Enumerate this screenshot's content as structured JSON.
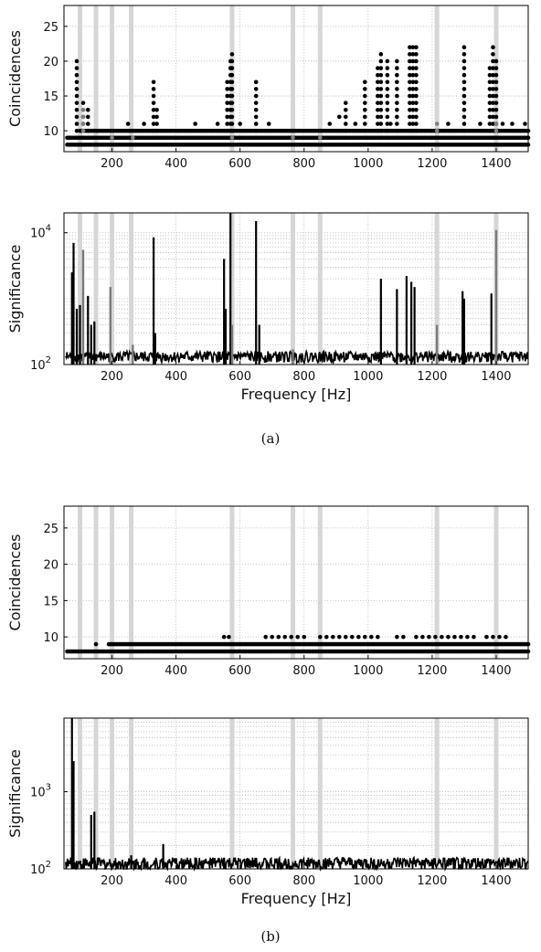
{
  "captions": {
    "a": "(a)",
    "b": "(b)"
  },
  "chart_data": [
    {
      "panel": "a-top",
      "type": "scatter",
      "ylabel": "Coincidences",
      "xlabel": "",
      "xlim": [
        50,
        1500
      ],
      "ylim": [
        7,
        28
      ],
      "yscale": "linear",
      "x_ticks": [
        200,
        400,
        600,
        800,
        1000,
        1200,
        1400
      ],
      "y_ticks": [
        10,
        15,
        20,
        25
      ],
      "grid": true,
      "vlines": [
        100,
        150,
        200,
        260,
        575,
        765,
        850,
        1215,
        1400
      ],
      "baseline_rows": [
        {
          "y": 8,
          "from": 60,
          "to": 1500
        },
        {
          "y": 9,
          "from": 60,
          "to": 1500
        },
        {
          "y": 10,
          "from": 100,
          "to": 1500
        }
      ],
      "columns": [
        {
          "x": 90,
          "top": 20
        },
        {
          "x": 110,
          "top": 14
        },
        {
          "x": 125,
          "top": 13
        },
        {
          "x": 330,
          "top": 17
        },
        {
          "x": 340,
          "top": 13
        },
        {
          "x": 560,
          "top": 17
        },
        {
          "x": 570,
          "top": 20
        },
        {
          "x": 575,
          "top": 21
        },
        {
          "x": 650,
          "top": 17
        },
        {
          "x": 930,
          "top": 14
        },
        {
          "x": 990,
          "top": 17
        },
        {
          "x": 1030,
          "top": 19
        },
        {
          "x": 1040,
          "top": 21
        },
        {
          "x": 1060,
          "top": 20
        },
        {
          "x": 1090,
          "top": 20
        },
        {
          "x": 1130,
          "top": 22
        },
        {
          "x": 1140,
          "top": 22
        },
        {
          "x": 1150,
          "top": 22
        },
        {
          "x": 1300,
          "top": 22
        },
        {
          "x": 1380,
          "top": 19
        },
        {
          "x": 1390,
          "top": 22
        },
        {
          "x": 1400,
          "top": 20
        }
      ],
      "points": [
        {
          "x": 250,
          "y": 11
        },
        {
          "x": 300,
          "y": 11
        },
        {
          "x": 460,
          "y": 11
        },
        {
          "x": 530,
          "y": 11
        },
        {
          "x": 600,
          "y": 11
        },
        {
          "x": 690,
          "y": 11
        },
        {
          "x": 880,
          "y": 11
        },
        {
          "x": 910,
          "y": 12
        },
        {
          "x": 960,
          "y": 11
        },
        {
          "x": 1070,
          "y": 11
        },
        {
          "x": 1250,
          "y": 11
        },
        {
          "x": 1350,
          "y": 11
        },
        {
          "x": 1420,
          "y": 11
        },
        {
          "x": 1450,
          "y": 11
        },
        {
          "x": 1490,
          "y": 11
        }
      ],
      "gray_points": [
        {
          "x": 110,
          "y": 13
        },
        {
          "x": 110,
          "y": 12
        },
        {
          "x": 110,
          "y": 11
        },
        {
          "x": 110,
          "y": 10
        },
        {
          "x": 200,
          "y": 9
        },
        {
          "x": 265,
          "y": 9
        },
        {
          "x": 575,
          "y": 9
        },
        {
          "x": 765,
          "y": 9
        },
        {
          "x": 850,
          "y": 9
        },
        {
          "x": 1215,
          "y": 11
        },
        {
          "x": 1215,
          "y": 10
        },
        {
          "x": 1400,
          "y": 11
        },
        {
          "x": 1400,
          "y": 10
        }
      ]
    },
    {
      "panel": "a-bottom",
      "type": "line",
      "ylabel": "Significance",
      "xlabel": "Frequency [Hz]",
      "xlim": [
        50,
        1500
      ],
      "ylim": [
        100,
        20000
      ],
      "yscale": "log",
      "x_ticks": [
        200,
        400,
        600,
        800,
        1000,
        1200,
        1400
      ],
      "y_ticks": [
        {
          "value": 100,
          "label": "10",
          "exp": "2"
        },
        {
          "value": 10000,
          "label": "10",
          "exp": "4"
        }
      ],
      "grid": true,
      "vlines": [
        100,
        150,
        200,
        260,
        575,
        765,
        850,
        1215,
        1400
      ],
      "noise_level": 130,
      "spikes": [
        {
          "x": 75,
          "y": 2500
        },
        {
          "x": 80,
          "y": 7000
        },
        {
          "x": 90,
          "y": 700
        },
        {
          "x": 100,
          "y": 800
        },
        {
          "x": 125,
          "y": 1100
        },
        {
          "x": 135,
          "y": 400
        },
        {
          "x": 145,
          "y": 450
        },
        {
          "x": 330,
          "y": 8500
        },
        {
          "x": 335,
          "y": 300
        },
        {
          "x": 550,
          "y": 4000
        },
        {
          "x": 555,
          "y": 700
        },
        {
          "x": 570,
          "y": 20000
        },
        {
          "x": 650,
          "y": 15000
        },
        {
          "x": 660,
          "y": 400
        },
        {
          "x": 1040,
          "y": 2000
        },
        {
          "x": 1090,
          "y": 1400
        },
        {
          "x": 1120,
          "y": 2200
        },
        {
          "x": 1135,
          "y": 1800
        },
        {
          "x": 1145,
          "y": 1500
        },
        {
          "x": 1295,
          "y": 1300
        },
        {
          "x": 1300,
          "y": 1000
        },
        {
          "x": 1385,
          "y": 1200
        }
      ],
      "gray_spikes": [
        {
          "x": 110,
          "y": 5500
        },
        {
          "x": 195,
          "y": 1500
        },
        {
          "x": 265,
          "y": 200
        },
        {
          "x": 575,
          "y": 400
        },
        {
          "x": 765,
          "y": 170
        },
        {
          "x": 1215,
          "y": 400
        },
        {
          "x": 1400,
          "y": 11000
        }
      ]
    },
    {
      "panel": "b-top",
      "type": "scatter",
      "ylabel": "Coincidences",
      "xlabel": "",
      "xlim": [
        50,
        1500
      ],
      "ylim": [
        7,
        28
      ],
      "yscale": "linear",
      "x_ticks": [
        200,
        400,
        600,
        800,
        1000,
        1200,
        1400
      ],
      "y_ticks": [
        10,
        15,
        20,
        25
      ],
      "grid": true,
      "vlines": [
        100,
        150,
        200,
        260,
        575,
        765,
        850,
        1215,
        1400
      ],
      "baseline_rows": [
        {
          "y": 8,
          "from": 60,
          "to": 1500
        },
        {
          "y": 9,
          "from": 190,
          "to": 1500
        }
      ],
      "points": [
        {
          "x": 150,
          "y": 9
        },
        {
          "x": 550,
          "y": 10
        },
        {
          "x": 565,
          "y": 10
        },
        {
          "x": 680,
          "y": 10
        },
        {
          "x": 700,
          "y": 10
        },
        {
          "x": 720,
          "y": 10
        },
        {
          "x": 740,
          "y": 10
        },
        {
          "x": 760,
          "y": 10
        },
        {
          "x": 780,
          "y": 10
        },
        {
          "x": 800,
          "y": 10
        },
        {
          "x": 850,
          "y": 10
        },
        {
          "x": 870,
          "y": 10
        },
        {
          "x": 890,
          "y": 10
        },
        {
          "x": 910,
          "y": 10
        },
        {
          "x": 930,
          "y": 10
        },
        {
          "x": 950,
          "y": 10
        },
        {
          "x": 970,
          "y": 10
        },
        {
          "x": 990,
          "y": 10
        },
        {
          "x": 1010,
          "y": 10
        },
        {
          "x": 1030,
          "y": 10
        },
        {
          "x": 1090,
          "y": 10
        },
        {
          "x": 1110,
          "y": 10
        },
        {
          "x": 1150,
          "y": 10
        },
        {
          "x": 1170,
          "y": 10
        },
        {
          "x": 1190,
          "y": 10
        },
        {
          "x": 1210,
          "y": 10
        },
        {
          "x": 1230,
          "y": 10
        },
        {
          "x": 1250,
          "y": 10
        },
        {
          "x": 1270,
          "y": 10
        },
        {
          "x": 1290,
          "y": 10
        },
        {
          "x": 1310,
          "y": 10
        },
        {
          "x": 1330,
          "y": 10
        },
        {
          "x": 1370,
          "y": 10
        },
        {
          "x": 1390,
          "y": 10
        },
        {
          "x": 1410,
          "y": 10
        },
        {
          "x": 1430,
          "y": 10
        }
      ]
    },
    {
      "panel": "b-bottom",
      "type": "line",
      "ylabel": "Significance",
      "xlabel": "Frequency [Hz]",
      "xlim": [
        50,
        1500
      ],
      "ylim": [
        100,
        9000
      ],
      "yscale": "log",
      "x_ticks": [
        200,
        400,
        600,
        800,
        1000,
        1200,
        1400
      ],
      "y_ticks": [
        {
          "value": 100,
          "label": "10",
          "exp": "2"
        },
        {
          "value": 1000,
          "label": "10",
          "exp": "3"
        }
      ],
      "grid": true,
      "vlines": [
        100,
        150,
        200,
        260,
        575,
        765,
        850,
        1215,
        1400
      ],
      "noise_level": 115,
      "spikes": [
        {
          "x": 75,
          "y": 9000
        },
        {
          "x": 80,
          "y": 2500
        },
        {
          "x": 135,
          "y": 500
        },
        {
          "x": 145,
          "y": 550
        },
        {
          "x": 260,
          "y": 150
        },
        {
          "x": 300,
          "y": 140
        },
        {
          "x": 360,
          "y": 210
        },
        {
          "x": 460,
          "y": 140
        },
        {
          "x": 550,
          "y": 140
        }
      ],
      "gray_spikes": []
    }
  ]
}
